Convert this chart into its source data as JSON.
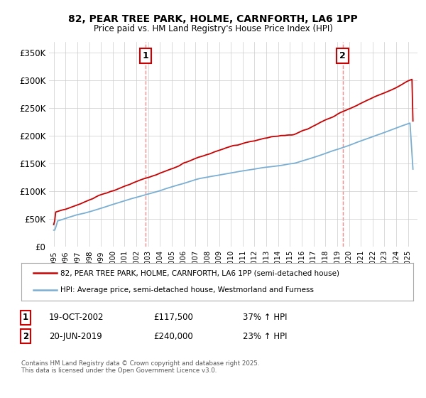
{
  "title": "82, PEAR TREE PARK, HOLME, CARNFORTH, LA6 1PP",
  "subtitle": "Price paid vs. HM Land Registry's House Price Index (HPI)",
  "ylim": [
    0,
    370000
  ],
  "yticks": [
    0,
    50000,
    100000,
    150000,
    200000,
    250000,
    300000,
    350000
  ],
  "ytick_labels": [
    "£0",
    "£50K",
    "£100K",
    "£150K",
    "£200K",
    "£250K",
    "£300K",
    "£350K"
  ],
  "legend_label_red": "82, PEAR TREE PARK, HOLME, CARNFORTH, LA6 1PP (semi-detached house)",
  "legend_label_blue": "HPI: Average price, semi-detached house, Westmorland and Furness",
  "annotation1_date": "19-OCT-2002",
  "annotation1_price": "£117,500",
  "annotation1_hpi": "37% ↑ HPI",
  "annotation2_date": "20-JUN-2019",
  "annotation2_price": "£240,000",
  "annotation2_hpi": "23% ↑ HPI",
  "copyright_text": "Contains HM Land Registry data © Crown copyright and database right 2025.\nThis data is licensed under the Open Government Licence v3.0.",
  "red_color": "#cc0000",
  "blue_color": "#7aafd4",
  "vline_color": "#ff8888",
  "grid_color": "#cccccc",
  "background_color": "#ffffff",
  "sale1_year": 2002.79,
  "sale2_year": 2019.46
}
